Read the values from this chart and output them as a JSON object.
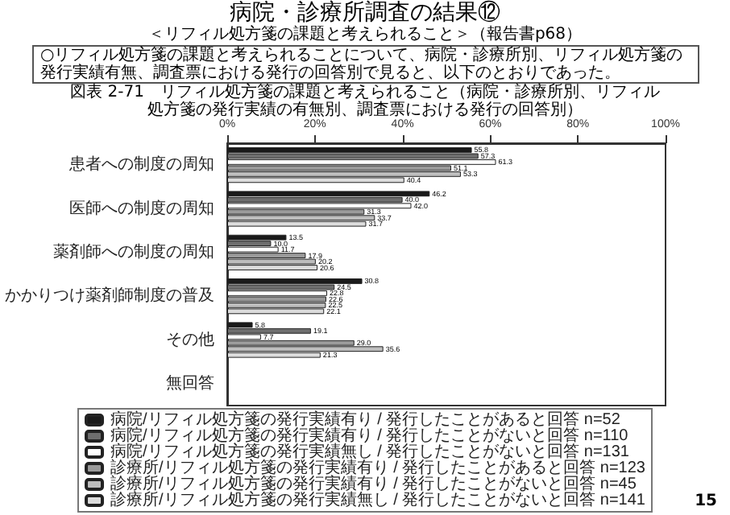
{
  "chart_data": {
    "type": "bar",
    "orientation": "horizontal",
    "title": "病院・診療所調査の結果⑫",
    "subtitle": "＜リフィル処方箋の課題と考えられること＞（報告書p68）",
    "annotations": [
      "○リフィル処方箋の課題と考えられることについて、病院・診療所別、リフィル処方箋の発行実績有無、調査票における発行の回答別で見ると、以下のとおりであった。",
      "図表 2-71　リフィル処方箋の課題と考えられること（病院・診療所別、リフィル処方箋の発行実績の有無別、調査票における発行の回答別）",
      "15"
    ],
    "categories": [
      "患者への制度の周知",
      "医師への制度の周知",
      "薬剤師への制度の周知",
      "かかりつけ薬剤師制度の普及",
      "その他",
      "無回答"
    ],
    "series": [
      {
        "name": "病院/リフィル処方箋の発行実績有り / 発行したことがあると回答 n=52",
        "color": "#1a1a1a",
        "values": [
          55.8,
          46.2,
          13.5,
          30.8,
          5.8,
          0
        ],
        "value_labels": [
          "55.8",
          "46.2",
          "13.5",
          "30.8",
          "5.8",
          null
        ]
      },
      {
        "name": "病院/リフィル処方箋の発行実績有り / 発行したことがないと回答 n=110",
        "color": "#6e6e6e",
        "values": [
          57.3,
          40.0,
          10.0,
          24.5,
          19.1,
          0
        ],
        "value_labels": [
          "57.3",
          "40.0",
          "10.0",
          "24.5",
          "19.1",
          null
        ]
      },
      {
        "name": "病院/リフィル処方箋の発行実績無し / 発行したことがないと回答 n=131",
        "color": "#ffffff",
        "values": [
          61.3,
          42.0,
          11.7,
          22.8,
          7.7,
          0
        ],
        "value_labels": [
          "61.3",
          "42.0",
          "11.7",
          "22.8",
          "7.7",
          null
        ]
      },
      {
        "name": "診療所/リフィル処方箋の発行実績有り / 発行したことがあると回答 n=123",
        "color": "#9a9a9a",
        "values": [
          51.1,
          31.3,
          17.9,
          22.6,
          29.0,
          0
        ],
        "value_labels": [
          "51.1",
          "31.3",
          "17.9",
          "22.6",
          "29.0",
          null
        ]
      },
      {
        "name": "診療所/リフィル処方箋の発行実績有り / 発行したことがないと回答 n=45",
        "color": "#bdbdbd",
        "values": [
          53.3,
          33.7,
          20.2,
          22.5,
          35.6,
          0
        ],
        "value_labels": [
          "53.3",
          "33.7",
          "20.2",
          "22.5",
          "35.6",
          null
        ]
      },
      {
        "name": "診療所/リフィル処方箋の発行実績無し / 発行したことがないと回答 n=141",
        "color": "#dcdcdc",
        "values": [
          40.4,
          31.7,
          20.6,
          22.1,
          21.3,
          0
        ],
        "value_labels": [
          "40.4",
          "31.7",
          "20.6",
          "22.1",
          "21.3",
          null
        ]
      }
    ],
    "xlim": [
      0,
      100
    ],
    "xticks": [
      {
        "value": 0,
        "label": "0%"
      },
      {
        "value": 20,
        "label": "20%"
      },
      {
        "value": 40,
        "label": "40%"
      },
      {
        "value": 60,
        "label": "60%"
      },
      {
        "value": 80,
        "label": "80%"
      },
      {
        "value": 100,
        "label": "100%"
      }
    ],
    "legend": "bottom"
  }
}
